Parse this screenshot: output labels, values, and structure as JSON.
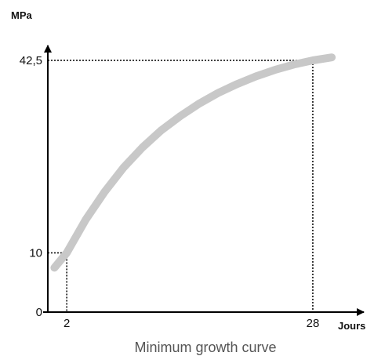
{
  "chart_data": {
    "type": "line",
    "title": "",
    "caption": "Minimum growth curve",
    "ylabel": "MPa",
    "xlabel": "Jours",
    "xlim": [
      0,
      30
    ],
    "ylim": [
      0,
      42.5
    ],
    "x_tick_labels": [
      "2",
      "28"
    ],
    "y_tick_labels": [
      "0",
      "10",
      "42,5"
    ],
    "reference_points": [
      {
        "x": 2,
        "y": 10
      },
      {
        "x": 28,
        "y": 42.5
      }
    ],
    "series": [
      {
        "x": [
          0.7,
          2,
          4,
          6,
          8,
          10,
          12,
          14,
          16,
          18,
          20,
          22,
          24,
          26,
          28,
          30
        ],
        "y": [
          7.5,
          10,
          15.6,
          20.3,
          24.4,
          27.8,
          30.7,
          33.1,
          35.2,
          37.0,
          38.5,
          39.8,
          40.9,
          41.8,
          42.5,
          43.0
        ]
      }
    ],
    "grid": false,
    "colors": {
      "curve": "#c8c8c8",
      "axes": "#000000",
      "guides": "#000000"
    }
  }
}
